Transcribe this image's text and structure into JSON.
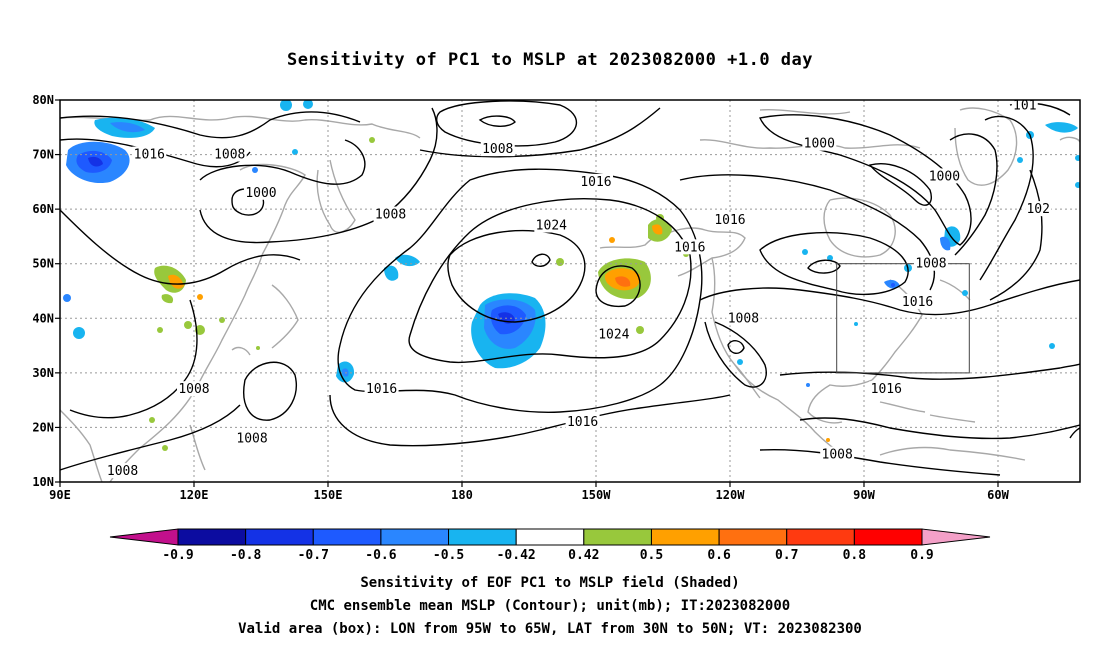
{
  "title": "Sensitivity of PC1 to MSLP at 2023082000 +1.0 day",
  "axes": {
    "lon_labels": [
      "90E",
      "120E",
      "150E",
      "180",
      "150W",
      "120W",
      "90W",
      "60W"
    ],
    "lat_labels": [
      "80N",
      "70N",
      "60N",
      "50N",
      "40N",
      "30N",
      "20N",
      "10N"
    ]
  },
  "valid_box": {
    "lon_min": -95,
    "lon_max": -65,
    "lat_min": 30,
    "lat_max": 50
  },
  "contour_labels": [
    {
      "text": "1016",
      "lon": 110,
      "lat": 70
    },
    {
      "text": "1008",
      "lon": 128,
      "lat": 70
    },
    {
      "text": "1000",
      "lon": 135,
      "lat": 63
    },
    {
      "text": "1008",
      "lon": 164,
      "lat": 59
    },
    {
      "text": "1008",
      "lon": -172,
      "lat": 71
    },
    {
      "text": "1016",
      "lon": -150,
      "lat": 65
    },
    {
      "text": "1024",
      "lon": -160,
      "lat": 57
    },
    {
      "text": "1016",
      "lon": -120,
      "lat": 58
    },
    {
      "text": "1016",
      "lon": -129,
      "lat": 53
    },
    {
      "text": "1000",
      "lon": -100,
      "lat": 72
    },
    {
      "text": "1000",
      "lon": -72,
      "lat": 66
    },
    {
      "text": "1008",
      "lon": -75,
      "lat": 50
    },
    {
      "text": "1016",
      "lon": -78,
      "lat": 43
    },
    {
      "text": "1024",
      "lon": -146,
      "lat": 37
    },
    {
      "text": "1008",
      "lon": -117,
      "lat": 40
    },
    {
      "text": "1016",
      "lon": -153,
      "lat": 21
    },
    {
      "text": "1016",
      "lon": -85,
      "lat": 27
    },
    {
      "text": "1008",
      "lon": -96,
      "lat": 15
    },
    {
      "text": "1016",
      "lon": 162,
      "lat": 27
    },
    {
      "text": "1008",
      "lon": 120,
      "lat": 27
    },
    {
      "text": "1008",
      "lon": 133,
      "lat": 18
    },
    {
      "text": "1008",
      "lon": 104,
      "lat": 12
    },
    {
      "text": "101",
      "lon": -54,
      "lat": 79
    },
    {
      "text": "102",
      "lon": -51,
      "lat": 60
    }
  ],
  "colorbar": {
    "labels": [
      "-0.9",
      "-0.8",
      "-0.7",
      "-0.6",
      "-0.5",
      "-0.42",
      "0.42",
      "0.5",
      "0.6",
      "0.7",
      "0.8",
      "0.9"
    ],
    "colors": [
      "#c2108c",
      "#0c0ca0",
      "#1432e6",
      "#1e5aff",
      "#2a86ff",
      "#18b4f0",
      "#ffffff",
      "#98c83c",
      "#ffa000",
      "#ff7010",
      "#ff3a10",
      "#ff0000",
      "#f4a0c8"
    ]
  },
  "footer": {
    "line1": "Sensitivity of EOF PC1 to MSLP field (Shaded)",
    "line2": "CMC ensemble mean MSLP (Contour); unit(mb); IT:2023082000",
    "line3": "Valid area (box): LON from 95W to 65W, LAT from 30N to 50N; VT: 2023082300"
  }
}
